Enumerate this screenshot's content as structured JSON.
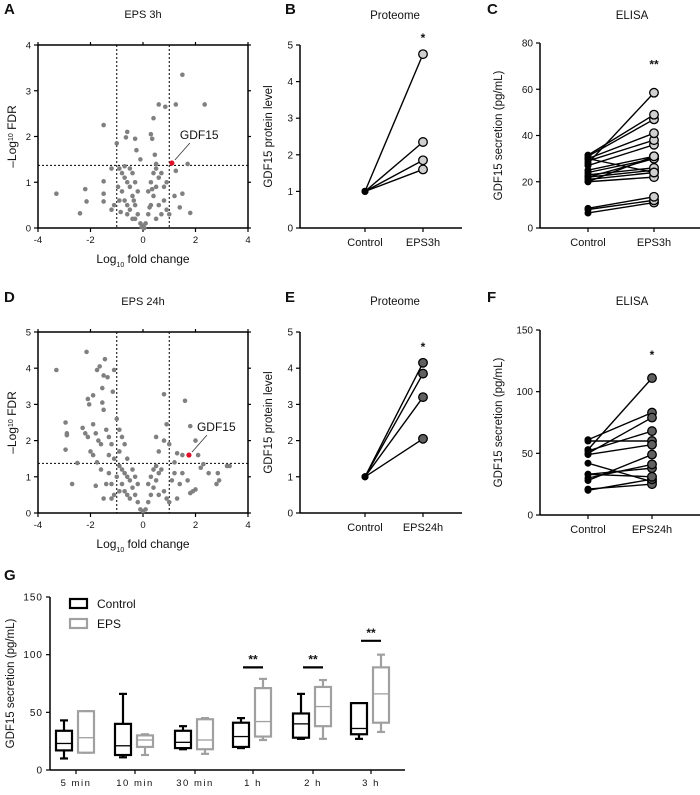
{
  "colors": {
    "axis": "#000000",
    "point": "#808080",
    "highlight": "#e0102a",
    "light_fill": "#d0d0d0",
    "dark_fill": "#606060",
    "eps_box": "#a0a0a0"
  },
  "chart_data": [
    {
      "panel": "A",
      "type": "scatter",
      "title": "EPS 3h",
      "xlabel": "Log10 fold change",
      "ylabel": "–Log10 FDR",
      "xlim": [
        -4,
        4
      ],
      "ylim": [
        0,
        4
      ],
      "xticks": [
        -4,
        -2,
        0,
        2,
        4
      ],
      "yticks": [
        0,
        1,
        2,
        3,
        4
      ],
      "thresholds": {
        "x": [
          -1,
          1
        ],
        "y": 1.37
      },
      "highlight": {
        "label": "GDF15",
        "x": 1.1,
        "y": 1.42
      },
      "points": [
        [
          -3.3,
          0.75
        ],
        [
          -2.4,
          0.32
        ],
        [
          -2.2,
          0.85
        ],
        [
          -2.15,
          0.58
        ],
        [
          -1.5,
          2.25
        ],
        [
          -1.5,
          1.02
        ],
        [
          -1.5,
          0.75
        ],
        [
          -1.5,
          0.58
        ],
        [
          -1.2,
          1.3
        ],
        [
          -1.0,
          1.85
        ],
        [
          -0.6,
          2.1
        ],
        [
          -0.65,
          1.98
        ],
        [
          -0.3,
          1.95
        ],
        [
          -0.25,
          1.7
        ],
        [
          -0.1,
          1.5
        ],
        [
          0.3,
          2.05
        ],
        [
          0.35,
          1.95
        ],
        [
          0.4,
          2.4
        ],
        [
          0.6,
          2.7
        ],
        [
          0.85,
          2.65
        ],
        [
          1.25,
          2.7
        ],
        [
          1.5,
          3.35
        ],
        [
          2.35,
          2.7
        ],
        [
          1.7,
          1.4
        ],
        [
          1.25,
          1.25
        ],
        [
          1.4,
          0.45
        ],
        [
          1.8,
          0.33
        ],
        [
          1.2,
          0.7
        ],
        [
          1.5,
          0.75
        ],
        [
          0.45,
          1.6
        ],
        [
          0.5,
          1.4
        ],
        [
          -0.9,
          1.3
        ],
        [
          -0.8,
          1.2
        ],
        [
          -0.7,
          1.1
        ],
        [
          -0.6,
          1.0
        ],
        [
          -0.5,
          0.9
        ],
        [
          -0.4,
          0.7
        ],
        [
          -0.3,
          0.5
        ],
        [
          -0.2,
          0.3
        ],
        [
          -0.1,
          0.1
        ],
        [
          -0.8,
          0.8
        ],
        [
          -0.7,
          0.6
        ],
        [
          -0.6,
          0.5
        ],
        [
          -0.5,
          0.4
        ],
        [
          -0.9,
          0.6
        ],
        [
          -1.1,
          0.5
        ],
        [
          -1.2,
          0.4
        ],
        [
          -0.4,
          1.2
        ],
        [
          -0.3,
          1.0
        ],
        [
          -0.2,
          0.8
        ],
        [
          -0.6,
          0.3
        ],
        [
          -0.4,
          0.2
        ],
        [
          -0.3,
          0.2
        ],
        [
          -0.5,
          1.3
        ],
        [
          -0.7,
          1.35
        ],
        [
          0.1,
          0.1
        ],
        [
          0.2,
          0.3
        ],
        [
          0.3,
          0.5
        ],
        [
          0.4,
          0.7
        ],
        [
          0.5,
          0.9
        ],
        [
          0.6,
          1.1
        ],
        [
          0.7,
          1.2
        ],
        [
          0.3,
          1.0
        ],
        [
          0.4,
          1.2
        ],
        [
          0.5,
          1.3
        ],
        [
          0.2,
          0.8
        ],
        [
          0.6,
          0.5
        ],
        [
          0.8,
          0.6
        ],
        [
          0.9,
          0.4
        ],
        [
          1.0,
          0.3
        ],
        [
          0.7,
          0.3
        ],
        [
          0.5,
          0.2
        ],
        [
          0,
          0.05
        ],
        [
          0.05,
          0
        ],
        [
          -0.05,
          0.02
        ],
        [
          0.9,
          1.0
        ],
        [
          0.8,
          0.9
        ],
        [
          -0.85,
          0.35
        ],
        [
          -0.95,
          0.9
        ],
        [
          0.35,
          0.85
        ],
        [
          -0.35,
          0.6
        ],
        [
          0.25,
          0.45
        ]
      ]
    },
    {
      "panel": "B",
      "type": "line",
      "title": "Proteome",
      "ylabel": "GDF15 protein level",
      "categories": [
        "Control",
        "EPS3h"
      ],
      "ylim": [
        0,
        5
      ],
      "yticks": [
        0,
        1,
        2,
        3,
        4,
        5
      ],
      "significance": "*",
      "pairs": [
        [
          1,
          4.75
        ],
        [
          1,
          2.35
        ],
        [
          1,
          1.85
        ],
        [
          1,
          1.6
        ]
      ],
      "fill": "light"
    },
    {
      "panel": "C",
      "type": "line",
      "title": "ELISA",
      "ylabel": "GDF15 secretion (pg/mL)",
      "categories": [
        "Control",
        "EPS3h"
      ],
      "ylim": [
        0,
        80
      ],
      "yticks": [
        0,
        20,
        40,
        60,
        80
      ],
      "significance": "**",
      "pairs": [
        [
          6.5,
          11
        ],
        [
          8,
          12
        ],
        [
          8.5,
          13.5
        ],
        [
          20,
          22
        ],
        [
          21,
          24
        ],
        [
          22,
          25
        ],
        [
          23,
          26
        ],
        [
          24,
          30
        ],
        [
          25,
          31
        ],
        [
          27,
          36
        ],
        [
          29,
          38
        ],
        [
          30,
          41
        ],
        [
          31,
          47
        ],
        [
          31.5,
          49
        ],
        [
          28,
          58.5
        ],
        [
          22,
          30
        ],
        [
          30,
          24
        ],
        [
          20,
          31
        ]
      ],
      "fill": "light"
    },
    {
      "panel": "D",
      "type": "scatter",
      "title": "EPS 24h",
      "xlabel": "Log10 fold change",
      "ylabel": "–Log10 FDR",
      "xlim": [
        -4,
        4
      ],
      "ylim": [
        0,
        5
      ],
      "xticks": [
        -4,
        -2,
        0,
        2,
        4
      ],
      "yticks": [
        0,
        1,
        2,
        3,
        4,
        5
      ],
      "thresholds": {
        "x": [
          -1,
          1
        ],
        "y": 1.37
      },
      "highlight": {
        "label": "GDF15",
        "x": 1.75,
        "y": 1.6
      },
      "points": [
        [
          -3.3,
          3.95
        ],
        [
          -2.95,
          2.5
        ],
        [
          -2.9,
          2.2
        ],
        [
          -2.9,
          2.15
        ],
        [
          -2.95,
          1.75
        ],
        [
          -2.7,
          0.8
        ],
        [
          -2.5,
          1.38
        ],
        [
          -2.15,
          4.45
        ],
        [
          -2.1,
          3.15
        ],
        [
          -2.05,
          3.0
        ],
        [
          -1.9,
          3.25
        ],
        [
          -1.75,
          3.95
        ],
        [
          -1.65,
          4.05
        ],
        [
          -1.45,
          4.25
        ],
        [
          -1.5,
          3.8
        ],
        [
          -1.35,
          3.75
        ],
        [
          -1.1,
          3.95
        ],
        [
          -1.15,
          3.35
        ],
        [
          -1.55,
          3.45
        ],
        [
          -1.55,
          3.05
        ],
        [
          -1.5,
          2.85
        ],
        [
          -2.3,
          2.35
        ],
        [
          -2.2,
          2.2
        ],
        [
          -2.1,
          2.1
        ],
        [
          -1.9,
          2.45
        ],
        [
          -1.8,
          2.2
        ],
        [
          -1.7,
          2.0
        ],
        [
          -1.6,
          1.9
        ],
        [
          -1.4,
          2.3
        ],
        [
          -1.3,
          2.1
        ],
        [
          -1.2,
          1.9
        ],
        [
          -1.0,
          2.6
        ],
        [
          -0.9,
          2.3
        ],
        [
          -0.8,
          2.1
        ],
        [
          -0.7,
          1.9
        ],
        [
          -1.75,
          1.4
        ],
        [
          -1.6,
          1.2
        ],
        [
          -1.8,
          0.75
        ],
        [
          -1.5,
          0.4
        ],
        [
          -1.4,
          0.8
        ],
        [
          -1.9,
          1.6
        ],
        [
          -2.0,
          1.7
        ],
        [
          -1.1,
          1.5
        ],
        [
          -1.3,
          1.6
        ],
        [
          -0.9,
          1.7
        ],
        [
          -0.6,
          1.5
        ],
        [
          0.8,
          3.28
        ],
        [
          1.6,
          3.1
        ],
        [
          1.8,
          2.4
        ],
        [
          0.9,
          2.45
        ],
        [
          0.5,
          2.1
        ],
        [
          0.8,
          2.0
        ],
        [
          1.0,
          1.9
        ],
        [
          1.3,
          1.65
        ],
        [
          1.5,
          1.6
        ],
        [
          2.0,
          2.0
        ],
        [
          2.1,
          1.6
        ],
        [
          2.2,
          1.25
        ],
        [
          2.3,
          1.35
        ],
        [
          2.5,
          1.1
        ],
        [
          2.8,
          0.8
        ],
        [
          2.9,
          0.9
        ],
        [
          3.2,
          1.3
        ],
        [
          3.3,
          1.3
        ],
        [
          2.0,
          0.65
        ],
        [
          1.8,
          0.55
        ],
        [
          1.9,
          0.6
        ],
        [
          1.5,
          1.1
        ],
        [
          1.4,
          0.8
        ],
        [
          1.2,
          1.4
        ],
        [
          0.6,
          1.7
        ],
        [
          1.3,
          0.4
        ],
        [
          1.7,
          0.9
        ],
        [
          2.85,
          1.1
        ],
        [
          -0.9,
          1.3
        ],
        [
          -0.8,
          1.2
        ],
        [
          -0.7,
          1.1
        ],
        [
          -0.6,
          1.0
        ],
        [
          -0.5,
          0.9
        ],
        [
          -0.4,
          0.7
        ],
        [
          -0.3,
          0.5
        ],
        [
          -0.2,
          0.3
        ],
        [
          -0.1,
          0.1
        ],
        [
          -0.8,
          0.8
        ],
        [
          -0.7,
          0.6
        ],
        [
          -0.6,
          0.5
        ],
        [
          -0.5,
          0.4
        ],
        [
          -0.9,
          0.6
        ],
        [
          -1.1,
          0.5
        ],
        [
          -1.2,
          0.4
        ],
        [
          -0.4,
          1.2
        ],
        [
          -0.3,
          1.0
        ],
        [
          -0.2,
          0.8
        ],
        [
          0.1,
          0.1
        ],
        [
          0.2,
          0.3
        ],
        [
          0.3,
          0.5
        ],
        [
          0.4,
          0.7
        ],
        [
          0.5,
          0.9
        ],
        [
          0.6,
          1.1
        ],
        [
          0.7,
          1.2
        ],
        [
          0.3,
          1.0
        ],
        [
          0.4,
          1.2
        ],
        [
          0.5,
          1.3
        ],
        [
          0.2,
          0.8
        ],
        [
          0.6,
          0.5
        ],
        [
          0.8,
          0.6
        ],
        [
          0.9,
          0.4
        ],
        [
          1.0,
          0.3
        ],
        [
          0,
          0.05
        ],
        [
          -1.3,
          1.1
        ],
        [
          -1.2,
          0.8
        ],
        [
          -1.0,
          1.0
        ],
        [
          1.1,
          0.9
        ],
        [
          1.2,
          1.1
        ]
      ]
    },
    {
      "panel": "E",
      "type": "line",
      "title": "Proteome",
      "ylabel": "GDF15 protein level",
      "categories": [
        "Control",
        "EPS24h"
      ],
      "ylim": [
        0,
        5
      ],
      "yticks": [
        0,
        1,
        2,
        3,
        4,
        5
      ],
      "significance": "*",
      "pairs": [
        [
          1,
          4.15
        ],
        [
          1,
          3.85
        ],
        [
          1,
          3.2
        ],
        [
          1,
          2.05
        ]
      ],
      "fill": "dark"
    },
    {
      "panel": "F",
      "type": "line",
      "title": "ELISA",
      "ylabel": "GDF15 secretion (pg/mL)",
      "categories": [
        "Control",
        "EPS24h"
      ],
      "ylim": [
        0,
        150
      ],
      "yticks": [
        0,
        50,
        100,
        150
      ],
      "significance": "*",
      "pairs": [
        [
          53,
          111
        ],
        [
          61,
          83
        ],
        [
          50,
          79
        ],
        [
          52,
          68
        ],
        [
          60,
          60
        ],
        [
          49,
          57
        ],
        [
          42,
          27
        ],
        [
          33,
          38
        ],
        [
          30,
          41
        ],
        [
          28,
          49
        ],
        [
          21,
          25
        ],
        [
          20,
          29
        ],
        [
          33,
          31
        ]
      ],
      "fill": "dark"
    },
    {
      "panel": "G",
      "type": "box",
      "ylabel": "GDF15 secretion (pg/mL)",
      "categories": [
        "5 min",
        "10 min",
        "30 min",
        "1 h",
        "2 h",
        "3 h"
      ],
      "ylim": [
        0,
        150
      ],
      "yticks": [
        0,
        50,
        100,
        150
      ],
      "legend": {
        "position": "top-left",
        "entries": [
          "Control",
          "EPS"
        ]
      },
      "series": [
        {
          "name": "Control",
          "boxes": [
            {
              "min": 10,
              "q1": 17,
              "median": 23,
              "q3": 34,
              "max": 43
            },
            {
              "min": 11,
              "q1": 13,
              "median": 21,
              "q3": 40,
              "max": 66
            },
            {
              "min": 18,
              "q1": 19,
              "median": 24,
              "q3": 34,
              "max": 38
            },
            {
              "min": 19,
              "q1": 20,
              "median": 29,
              "q3": 41,
              "max": 45
            },
            {
              "min": 27,
              "q1": 28,
              "median": 40,
              "q3": 49,
              "max": 66
            },
            {
              "min": 27,
              "q1": 31,
              "median": 36,
              "q3": 58,
              "max": 58
            }
          ]
        },
        {
          "name": "EPS",
          "boxes": [
            {
              "min": 15,
              "q1": 15,
              "median": 28,
              "q3": 51,
              "max": 51
            },
            {
              "min": 13,
              "q1": 20,
              "median": 26,
              "q3": 30,
              "max": 31
            },
            {
              "min": 14,
              "q1": 18,
              "median": 26,
              "q3": 44,
              "max": 45
            },
            {
              "min": 26,
              "q1": 29,
              "median": 42,
              "q3": 71,
              "max": 79
            },
            {
              "min": 27,
              "q1": 38,
              "median": 55,
              "q3": 72,
              "max": 78
            },
            {
              "min": 33,
              "q1": 41,
              "median": 66,
              "q3": 89,
              "max": 100
            }
          ]
        }
      ],
      "significance": [
        {
          "category": "1 h",
          "label": "**",
          "y": 89
        },
        {
          "category": "2 h",
          "label": "**",
          "y": 89
        },
        {
          "category": "3 h",
          "label": "**",
          "y": 112
        }
      ]
    }
  ]
}
